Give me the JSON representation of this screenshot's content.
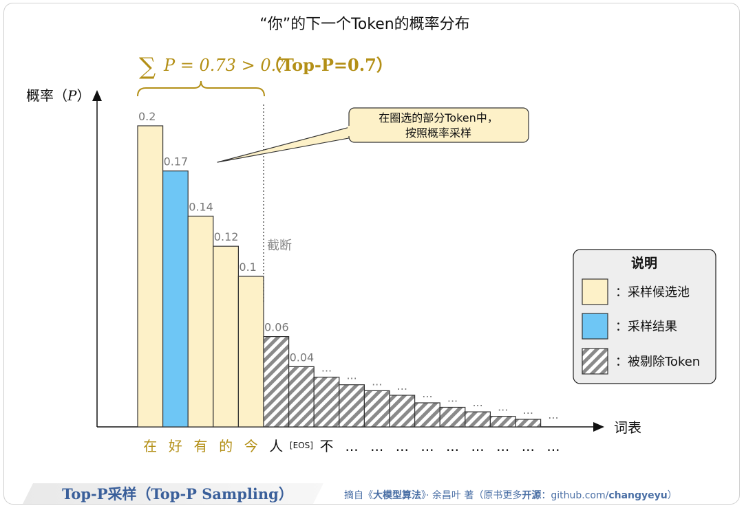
{
  "title": "“你”的下一个Token的概率分布",
  "formula": {
    "sum_symbol": "∑",
    "expr": "P = 0.73 > 0.7",
    "suffix": "（Top-P=0.7）"
  },
  "ylabel_prefix": "概率（",
  "ylabel_var": "P",
  "ylabel_suffix": "）",
  "xlabel": "词表",
  "cutoff_label": "截断",
  "callout_lines": [
    "在圈选的部分Token中，",
    "按照概率采样"
  ],
  "legend": {
    "title": "说明",
    "items": [
      {
        "label": "：采样候选池",
        "kind": "pool"
      },
      {
        "label": "：采样结果",
        "kind": "result"
      },
      {
        "label": "：被剔除Token",
        "kind": "removed"
      }
    ]
  },
  "colors": {
    "pool": "#fdf1c8",
    "result": "#6ec6f5",
    "removed_stripe": "#8a8a8a",
    "accent": "#b38f16",
    "token_highlight": "#b38f16",
    "token_normal": "#111111",
    "footer": "#4a6fa5"
  },
  "chart_data": {
    "type": "bar",
    "categories": [
      "在",
      "好",
      "有",
      "的",
      "今",
      "人",
      "[EOS]",
      "不",
      "...",
      "...",
      "...",
      "...",
      "...",
      "...",
      "...",
      "..."
    ],
    "values": [
      0.2,
      0.17,
      0.14,
      0.12,
      0.1,
      0.06,
      0.04,
      0.033,
      0.028,
      0.024,
      0.021,
      0.016,
      0.013,
      0.01,
      0.007,
      0.005
    ],
    "value_labels": [
      "0.2",
      "0.17",
      "0.14",
      "0.12",
      "0.1",
      "0.06",
      "0.04",
      "...",
      "...",
      "...",
      "...",
      "...",
      "...",
      "...",
      "...",
      "..."
    ],
    "kinds": [
      "pool",
      "result",
      "pool",
      "pool",
      "pool",
      "removed",
      "removed",
      "removed",
      "removed",
      "removed",
      "removed",
      "removed",
      "removed",
      "removed",
      "removed",
      "removed"
    ],
    "extra_tick_labels": [
      "...",
      "..."
    ],
    "ylim": [
      0,
      0.25
    ],
    "grid": false,
    "legend_position": "right"
  },
  "footer": {
    "left": "Top-P采样（Top-P Sampling）",
    "right_prefix": "摘自《",
    "right_book": "大模型算法",
    "right_mid": "》· 余昌叶 著（原书更多",
    "right_open": "开源",
    "right_colon": "：",
    "right_link_a": "github.com/",
    "right_link_b": "changyeyu",
    "right_end": "）"
  }
}
